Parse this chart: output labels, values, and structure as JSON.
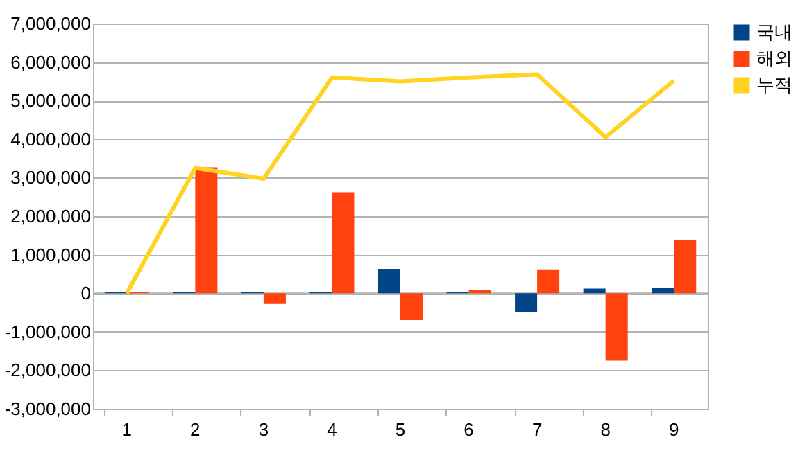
{
  "chart_data": {
    "type": "bar",
    "categories": [
      "1",
      "2",
      "3",
      "4",
      "5",
      "6",
      "7",
      "8",
      "9"
    ],
    "series": [
      {
        "name": "국내",
        "color": "#004586",
        "values": [
          20000,
          20000,
          20000,
          20000,
          620000,
          30000,
          -500000,
          120000,
          130000
        ]
      },
      {
        "name": "해외",
        "color": "#ff420e",
        "values": [
          20000,
          3270000,
          -280000,
          2620000,
          -700000,
          90000,
          600000,
          -1750000,
          1370000
        ]
      },
      {
        "name": "누적",
        "type": "line",
        "color": "#ffd320",
        "values": [
          0,
          3250000,
          2970000,
          5600000,
          5500000,
          5600000,
          5680000,
          4050000,
          5520000
        ]
      }
    ],
    "ylim": [
      -3000000,
      7000000
    ],
    "yticks": [
      {
        "value": -3000000,
        "label": "-3,000,000"
      },
      {
        "value": -2000000,
        "label": "-2,000,000"
      },
      {
        "value": -1000000,
        "label": "-1,000,000"
      },
      0,
      {
        "value": 1000000,
        "label": "1,000,000"
      },
      {
        "value": 2000000,
        "label": "2,000,000"
      },
      {
        "value": 3000000,
        "label": "3,000,000"
      },
      {
        "value": 4000000,
        "label": "4,000,000"
      },
      {
        "value": 5000000,
        "label": "5,000,000"
      },
      {
        "value": 6000000,
        "label": "6,000,000"
      },
      {
        "value": 7000000,
        "label": "7,000,000"
      }
    ],
    "grid": "y",
    "legend": "right"
  }
}
